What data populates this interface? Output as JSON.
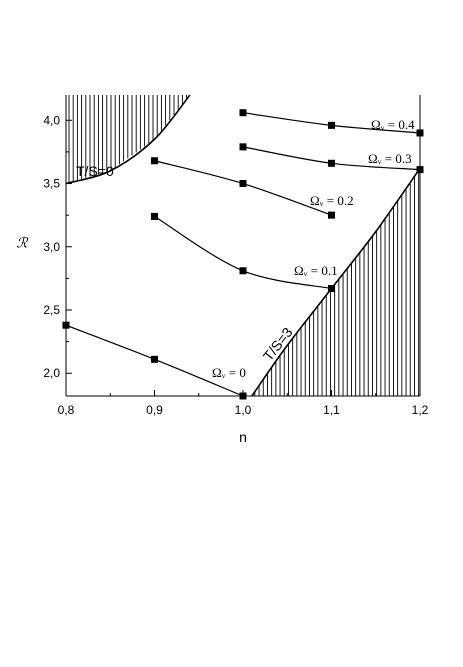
{
  "chart_data": {
    "type": "line",
    "xlabel": "n",
    "ylabel": "ℛ",
    "xlim": [
      0.8,
      1.2
    ],
    "ylim": [
      1.82,
      4.2
    ],
    "x_ticks": [
      "0,8",
      "0,9",
      "1,0",
      "1,1",
      "1,2"
    ],
    "y_ticks": [
      "2,0",
      "2,5",
      "3,0",
      "3,5",
      "4,0"
    ],
    "grid": false,
    "legend": "none",
    "series": [
      {
        "name": "Ωᵥ = 0",
        "x": [
          0.8,
          0.9,
          1.0
        ],
        "y": [
          2.38,
          2.11,
          1.82
        ]
      },
      {
        "name": "Ωᵥ = 0.1",
        "x": [
          0.9,
          1.0,
          1.1
        ],
        "y": [
          3.24,
          2.81,
          2.67
        ]
      },
      {
        "name": "Ωᵥ = 0.2",
        "x": [
          0.9,
          1.0,
          1.1
        ],
        "y": [
          3.68,
          3.5,
          3.25
        ]
      },
      {
        "name": "Ωᵥ = 0.3",
        "x": [
          1.0,
          1.1,
          1.2
        ],
        "y": [
          3.79,
          3.66,
          3.61
        ]
      },
      {
        "name": "Ωᵥ = 0.4",
        "x": [
          1.0,
          1.1,
          1.2
        ],
        "y": [
          4.06,
          3.96,
          3.9
        ]
      }
    ],
    "boundaries": [
      {
        "label": "T/S=0",
        "x": [
          0.8,
          0.85,
          0.9,
          0.94
        ],
        "y": [
          3.5,
          3.6,
          3.85,
          4.2
        ]
      },
      {
        "label": "T/S=3",
        "x": [
          1.01,
          1.05,
          1.1,
          1.15,
          1.2
        ],
        "y": [
          1.82,
          2.22,
          2.67,
          3.12,
          3.62
        ]
      }
    ]
  }
}
